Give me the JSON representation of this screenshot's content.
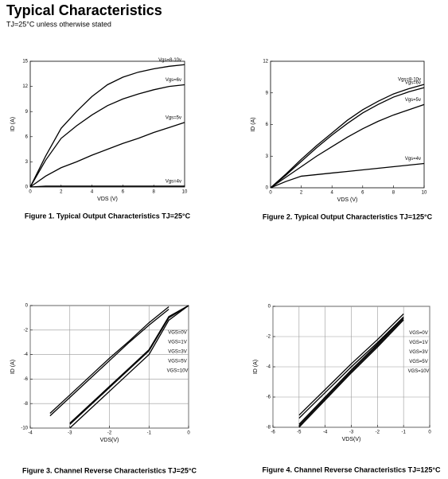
{
  "title": "Typical Characteristics",
  "subtitle": "TJ=25°C unless otherwise stated",
  "chart_data": [
    {
      "type": "line",
      "title": "Figure 1. Typical Output Characteristics TJ=25°C",
      "x_label": "VDS (V)",
      "y_label": "ID (A)",
      "x": [
        0,
        1,
        2,
        3,
        4,
        5,
        6,
        7,
        8,
        9,
        10
      ],
      "series": [
        {
          "name": "Vgs=8-10v",
          "color": "#000000",
          "values": [
            0,
            3.7,
            7,
            9,
            10.8,
            12.2,
            13.1,
            13.7,
            14.1,
            14.4,
            14.6
          ]
        },
        {
          "name": "Vgs=6v",
          "color": "#000000",
          "values": [
            0,
            3.2,
            5.8,
            7.3,
            8.6,
            9.7,
            10.5,
            11.1,
            11.6,
            12,
            12.2
          ]
        },
        {
          "name": "Vgs=5v",
          "color": "#000000",
          "values": [
            0,
            1.3,
            2.3,
            3,
            3.8,
            4.5,
            5.2,
            5.8,
            6.5,
            7.1,
            7.7
          ]
        },
        {
          "name": "Vgs=4v",
          "color": "#000000",
          "values": [
            0,
            0.1,
            0.1,
            0.1,
            0.1,
            0.1,
            0.1,
            0.1,
            0.1,
            0.1,
            0.1
          ]
        }
      ],
      "xlim": [
        0,
        10
      ],
      "xticks": [
        0,
        2,
        4,
        6,
        8,
        10
      ],
      "ylim": [
        0,
        15
      ],
      "yticks": [
        0,
        3,
        6,
        9,
        12,
        15
      ],
      "grid": false,
      "legend": "inline"
    },
    {
      "type": "line",
      "title": "Figure 2. Typical Output Characteristics TJ=125°C",
      "x_label": "VDS (V)",
      "y_label": "ID (A)",
      "x": [
        0,
        1,
        2,
        3,
        4,
        5,
        6,
        7,
        8,
        9,
        10
      ],
      "series": [
        {
          "name": "Vgs=8-10v",
          "color": "#000000",
          "values": [
            0,
            1.3,
            2.7,
            4,
            5.2,
            6.4,
            7.4,
            8.2,
            8.9,
            9.4,
            9.8
          ]
        },
        {
          "name": "Vgs=6v",
          "color": "#000000",
          "values": [
            0,
            1.2,
            2.5,
            3.8,
            5,
            6.1,
            7.1,
            7.9,
            8.6,
            9.1,
            9.5
          ]
        },
        {
          "name": "Vgs=5v",
          "color": "#000000",
          "values": [
            0,
            1,
            2,
            3,
            3.9,
            4.8,
            5.6,
            6.3,
            6.9,
            7.4,
            7.9
          ]
        },
        {
          "name": "Vgs=4v",
          "color": "#000000",
          "values": [
            0,
            0.6,
            1.1,
            1.25,
            1.4,
            1.55,
            1.7,
            1.85,
            2,
            2.15,
            2.3
          ]
        }
      ],
      "xlim": [
        0,
        10
      ],
      "xticks": [
        0,
        2,
        4,
        6,
        8,
        10
      ],
      "ylim": [
        0,
        12
      ],
      "yticks": [
        0,
        3,
        6,
        9,
        12
      ],
      "grid": false,
      "legend": "inline"
    },
    {
      "type": "line",
      "title": "Figure 3. Channel Reverse Characteristics TJ=25°C",
      "x_label": "VDS(V)",
      "y_label": "ID (A)",
      "x": [
        -4,
        -3.5,
        -3,
        -2.5,
        -2,
        -1.5,
        -1,
        -0.5,
        0
      ],
      "series": [
        {
          "name": "VGS=0V",
          "color": "#000000",
          "values": [
            null,
            -8.8,
            -7.3,
            -5.8,
            -4.3,
            -2.9,
            -1.4,
            -0.1,
            null
          ]
        },
        {
          "name": "VGS=1V",
          "color": "#000000",
          "values": [
            null,
            -9,
            -7.5,
            -6,
            -4.5,
            -3,
            -1.6,
            -0.3,
            null
          ]
        },
        {
          "name": "VGS=3V",
          "color": "#000000",
          "values": [
            null,
            null,
            -10,
            -8.5,
            -7,
            -5.5,
            -4,
            -1.2,
            0
          ]
        },
        {
          "name": "VGS=5V",
          "color": "#000000",
          "values": [
            null,
            null,
            -9.7,
            -8.2,
            -6.7,
            -5.2,
            -3.7,
            -1,
            0
          ]
        },
        {
          "name": "VGS=10V",
          "color": "#000000",
          "values": [
            null,
            null,
            -9.6,
            -8.1,
            -6.6,
            -5.1,
            -3.6,
            -0.9,
            0
          ]
        }
      ],
      "xlim": [
        -4,
        0
      ],
      "xticks": [
        -4,
        -3,
        -2,
        -1,
        0
      ],
      "ylim": [
        -10,
        0
      ],
      "yticks": [
        -10,
        -8,
        -6,
        -4,
        -2,
        0
      ],
      "grid": true,
      "legend": "right"
    },
    {
      "type": "line",
      "title": "Figure 4. Channel Reverse Characteristics TJ=125°C",
      "x_label": "VDS(V)",
      "y_label": "ID (A)",
      "x": [
        -6,
        -5,
        -4,
        -3,
        -2,
        -1,
        0
      ],
      "series": [
        {
          "name": "VGS=0V",
          "color": "#000000",
          "values": [
            null,
            -7.2,
            -5.5,
            -3.8,
            -2.2,
            -0.5,
            null
          ]
        },
        {
          "name": "VGS=1V",
          "color": "#000000",
          "values": [
            null,
            -7.4,
            -5.7,
            -4,
            -2.4,
            -0.7,
            null
          ]
        },
        {
          "name": "VGS=3V",
          "color": "#000000",
          "values": [
            null,
            -8,
            -6.2,
            -4.4,
            -2.7,
            -0.9,
            null
          ]
        },
        {
          "name": "VGS=5V",
          "color": "#000000",
          "values": [
            null,
            -7.9,
            -6.1,
            -4.3,
            -2.6,
            -0.8,
            null
          ]
        },
        {
          "name": "VGS=10V",
          "color": "#000000",
          "values": [
            null,
            -7.8,
            -6,
            -4.2,
            -2.5,
            -0.7,
            null
          ]
        }
      ],
      "xlim": [
        -6,
        0
      ],
      "xticks": [
        -6,
        -5,
        -4,
        -3,
        -2,
        -1,
        0
      ],
      "ylim": [
        -8,
        0
      ],
      "yticks": [
        -8,
        -6,
        -4,
        -2,
        0
      ],
      "grid": true,
      "legend": "right"
    }
  ]
}
